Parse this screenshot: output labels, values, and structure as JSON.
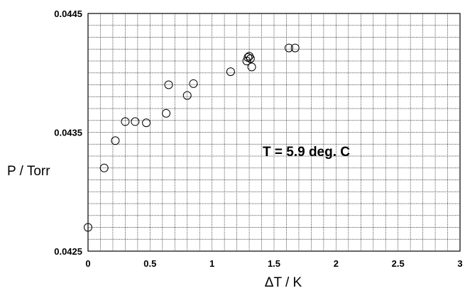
{
  "chart_data": {
    "type": "scatter",
    "title": "",
    "xlabel": "ΔT / K",
    "ylabel": "P / Torr",
    "xlim": [
      0,
      3
    ],
    "ylim": [
      0.0425,
      0.0445
    ],
    "x_ticks": [
      0,
      0.5,
      1,
      1.5,
      2,
      2.5,
      3
    ],
    "x_tick_labels": [
      "0",
      "0.5",
      "1",
      "1.5",
      "2",
      "2.5",
      "3"
    ],
    "y_ticks": [
      0.0425,
      0.0435,
      0.0445
    ],
    "y_tick_labels": [
      "0.0425",
      "0.0435",
      "0.0445"
    ],
    "x_grid_step": 0.1,
    "y_grid_step": 0.0001,
    "grid": true,
    "marker": "open-circle",
    "annotation": "T = 5.9 deg. C",
    "series": [
      {
        "x": [
          0.0,
          0.13,
          0.22,
          0.3,
          0.38,
          0.47,
          0.63,
          0.65,
          0.8,
          0.85,
          1.15,
          1.28,
          1.29,
          1.3,
          1.31,
          1.32,
          1.62,
          1.67
        ],
        "y": [
          0.0427,
          0.0432,
          0.04343,
          0.04359,
          0.04359,
          0.04358,
          0.04366,
          0.0439,
          0.04381,
          0.04391,
          0.04401,
          0.0441,
          0.04413,
          0.04414,
          0.04412,
          0.04405,
          0.04421,
          0.04421
        ]
      }
    ]
  }
}
